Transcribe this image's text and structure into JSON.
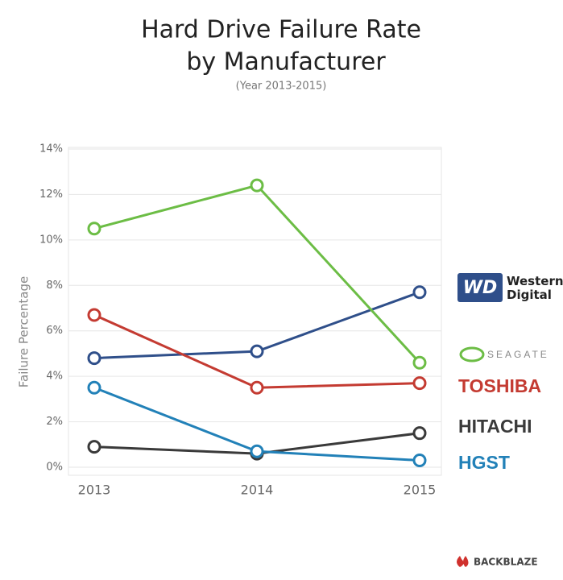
{
  "chart_data": {
    "type": "line",
    "title": "Hard Drive Failure Rate",
    "title_line2": "by Manufacturer",
    "subtitle": "(Year 2013-2015)",
    "y_label": "Failure Percentage",
    "source": "BACKBLAZE",
    "categories": [
      "2013",
      "2014",
      "2015"
    ],
    "series": [
      {
        "name": "Western Digital",
        "badge": "WD",
        "color": "#2f4f8a",
        "values": [
          4.8,
          5.1,
          7.7
        ]
      },
      {
        "name": "SEAGATE",
        "color": "#6cbd45",
        "values": [
          10.5,
          12.4,
          4.6
        ]
      },
      {
        "name": "TOSHIBA",
        "color": "#c43b32",
        "values": [
          6.7,
          3.5,
          3.7
        ]
      },
      {
        "name": "HITACHI",
        "color": "#3a3a3a",
        "values": [
          0.9,
          0.6,
          1.5
        ]
      },
      {
        "name": "HGST",
        "color": "#2281b8",
        "values": [
          3.5,
          0.7,
          0.3
        ]
      }
    ],
    "ylim": [
      0,
      14
    ],
    "yticks": [
      {
        "value": 0,
        "label": "0%"
      },
      {
        "value": 2,
        "label": "2%"
      },
      {
        "value": 4,
        "label": "4%"
      },
      {
        "value": 6,
        "label": "6%"
      },
      {
        "value": 8,
        "label": "8%"
      },
      {
        "value": 10,
        "label": "10%"
      },
      {
        "value": 12,
        "label": "12%"
      },
      {
        "value": 14,
        "label": "14%"
      }
    ],
    "grid": true
  }
}
